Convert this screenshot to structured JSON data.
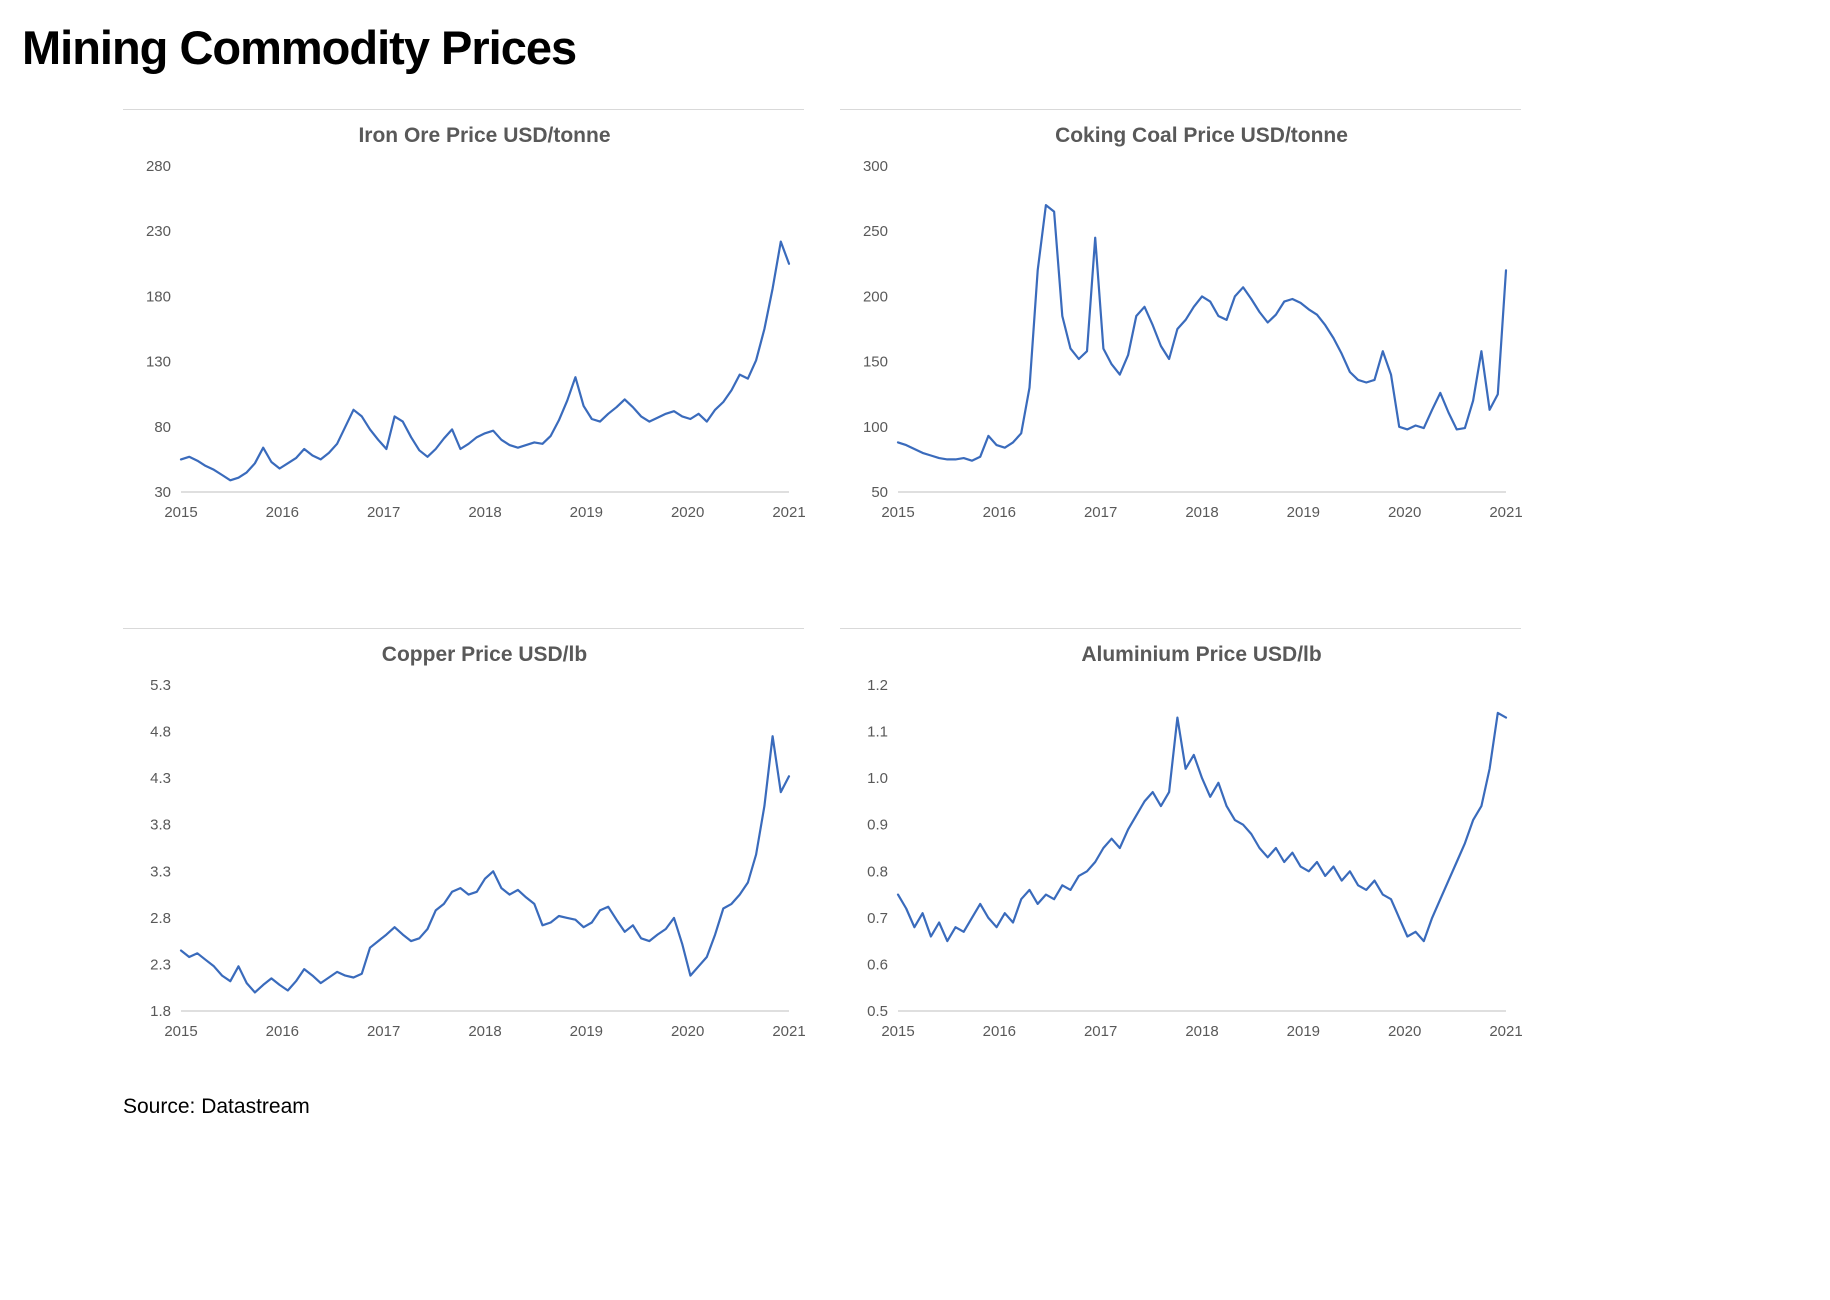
{
  "page": {
    "title": "Mining Commodity Prices",
    "source": "Source: Datastream"
  },
  "style": {
    "line_color": "#3a6bbc",
    "axis_color": "#bfbfbf",
    "label_color": "#595959"
  },
  "chart_data": [
    {
      "type": "line",
      "title": "Iron Ore Price USD/tonne",
      "x_range": [
        2015,
        2021
      ],
      "x_ticks": [
        "2015",
        "2016",
        "2017",
        "2018",
        "2019",
        "2020",
        "2021"
      ],
      "ylim": [
        30,
        280
      ],
      "y_ticks": [
        "30",
        "80",
        "130",
        "180",
        "230",
        "280"
      ],
      "grid": false,
      "legend": false,
      "values": [
        55,
        57,
        54,
        50,
        47,
        43,
        39,
        41,
        45,
        52,
        64,
        53,
        48,
        52,
        56,
        63,
        58,
        55,
        60,
        67,
        80,
        93,
        88,
        78,
        70,
        63,
        88,
        84,
        72,
        62,
        57,
        63,
        71,
        78,
        63,
        67,
        72,
        75,
        77,
        70,
        66,
        64,
        66,
        68,
        67,
        73,
        85,
        100,
        118,
        96,
        86,
        84,
        90,
        95,
        101,
        95,
        88,
        84,
        87,
        90,
        92,
        88,
        86,
        90,
        84,
        93,
        99,
        108,
        120,
        117,
        131,
        155,
        186,
        222,
        205
      ]
    },
    {
      "type": "line",
      "title": "Coking Coal Price USD/tonne",
      "x_range": [
        2015,
        2021
      ],
      "x_ticks": [
        "2015",
        "2016",
        "2017",
        "2018",
        "2019",
        "2020",
        "2021"
      ],
      "ylim": [
        50,
        300
      ],
      "y_ticks": [
        "50",
        "100",
        "150",
        "200",
        "250",
        "300"
      ],
      "grid": false,
      "legend": false,
      "values": [
        88,
        86,
        83,
        80,
        78,
        76,
        75,
        75,
        76,
        74,
        77,
        93,
        86,
        84,
        88,
        95,
        130,
        220,
        270,
        265,
        185,
        160,
        152,
        158,
        245,
        160,
        148,
        140,
        155,
        185,
        192,
        178,
        162,
        152,
        175,
        182,
        192,
        200,
        196,
        185,
        182,
        200,
        207,
        198,
        188,
        180,
        186,
        196,
        198,
        195,
        190,
        186,
        178,
        168,
        156,
        142,
        136,
        134,
        136,
        158,
        140,
        100,
        98,
        101,
        99,
        113,
        126,
        111,
        98,
        99,
        120,
        158,
        113,
        125,
        220
      ]
    },
    {
      "type": "line",
      "title": "Copper Price USD/lb",
      "x_range": [
        2015,
        2021
      ],
      "x_ticks": [
        "2015",
        "2016",
        "2017",
        "2018",
        "2019",
        "2020",
        "2021"
      ],
      "ylim": [
        1.8,
        5.3
      ],
      "y_ticks": [
        "1.8",
        "2.3",
        "2.8",
        "3.3",
        "3.8",
        "4.3",
        "4.8",
        "5.3"
      ],
      "grid": false,
      "legend": false,
      "values": [
        2.45,
        2.38,
        2.42,
        2.35,
        2.28,
        2.18,
        2.12,
        2.28,
        2.1,
        2.0,
        2.08,
        2.15,
        2.08,
        2.02,
        2.12,
        2.25,
        2.18,
        2.1,
        2.16,
        2.22,
        2.18,
        2.16,
        2.2,
        2.48,
        2.55,
        2.62,
        2.7,
        2.62,
        2.55,
        2.58,
        2.68,
        2.88,
        2.95,
        3.08,
        3.12,
        3.05,
        3.08,
        3.22,
        3.3,
        3.12,
        3.05,
        3.1,
        3.02,
        2.95,
        2.72,
        2.75,
        2.82,
        2.8,
        2.78,
        2.7,
        2.75,
        2.88,
        2.92,
        2.78,
        2.65,
        2.72,
        2.58,
        2.55,
        2.62,
        2.68,
        2.8,
        2.52,
        2.18,
        2.28,
        2.38,
        2.62,
        2.9,
        2.95,
        3.05,
        3.18,
        3.48,
        4.0,
        4.75,
        4.15,
        4.32
      ]
    },
    {
      "type": "line",
      "title": "Aluminium Price USD/lb",
      "x_range": [
        2015,
        2021
      ],
      "x_ticks": [
        "2015",
        "2016",
        "2017",
        "2018",
        "2019",
        "2020",
        "2021"
      ],
      "ylim": [
        0.5,
        1.2
      ],
      "y_ticks": [
        "0.5",
        "0.6",
        "0.7",
        "0.8",
        "0.9",
        "1.0",
        "1.1",
        "1.2"
      ],
      "grid": false,
      "legend": false,
      "values": [
        0.75,
        0.72,
        0.68,
        0.71,
        0.66,
        0.69,
        0.65,
        0.68,
        0.67,
        0.7,
        0.73,
        0.7,
        0.68,
        0.71,
        0.69,
        0.74,
        0.76,
        0.73,
        0.75,
        0.74,
        0.77,
        0.76,
        0.79,
        0.8,
        0.82,
        0.85,
        0.87,
        0.85,
        0.89,
        0.92,
        0.95,
        0.97,
        0.94,
        0.97,
        1.13,
        1.02,
        1.05,
        1.0,
        0.96,
        0.99,
        0.94,
        0.91,
        0.9,
        0.88,
        0.85,
        0.83,
        0.85,
        0.82,
        0.84,
        0.81,
        0.8,
        0.82,
        0.79,
        0.81,
        0.78,
        0.8,
        0.77,
        0.76,
        0.78,
        0.75,
        0.74,
        0.7,
        0.66,
        0.67,
        0.65,
        0.7,
        0.74,
        0.78,
        0.82,
        0.86,
        0.91,
        0.94,
        1.02,
        1.14,
        1.13
      ]
    }
  ]
}
